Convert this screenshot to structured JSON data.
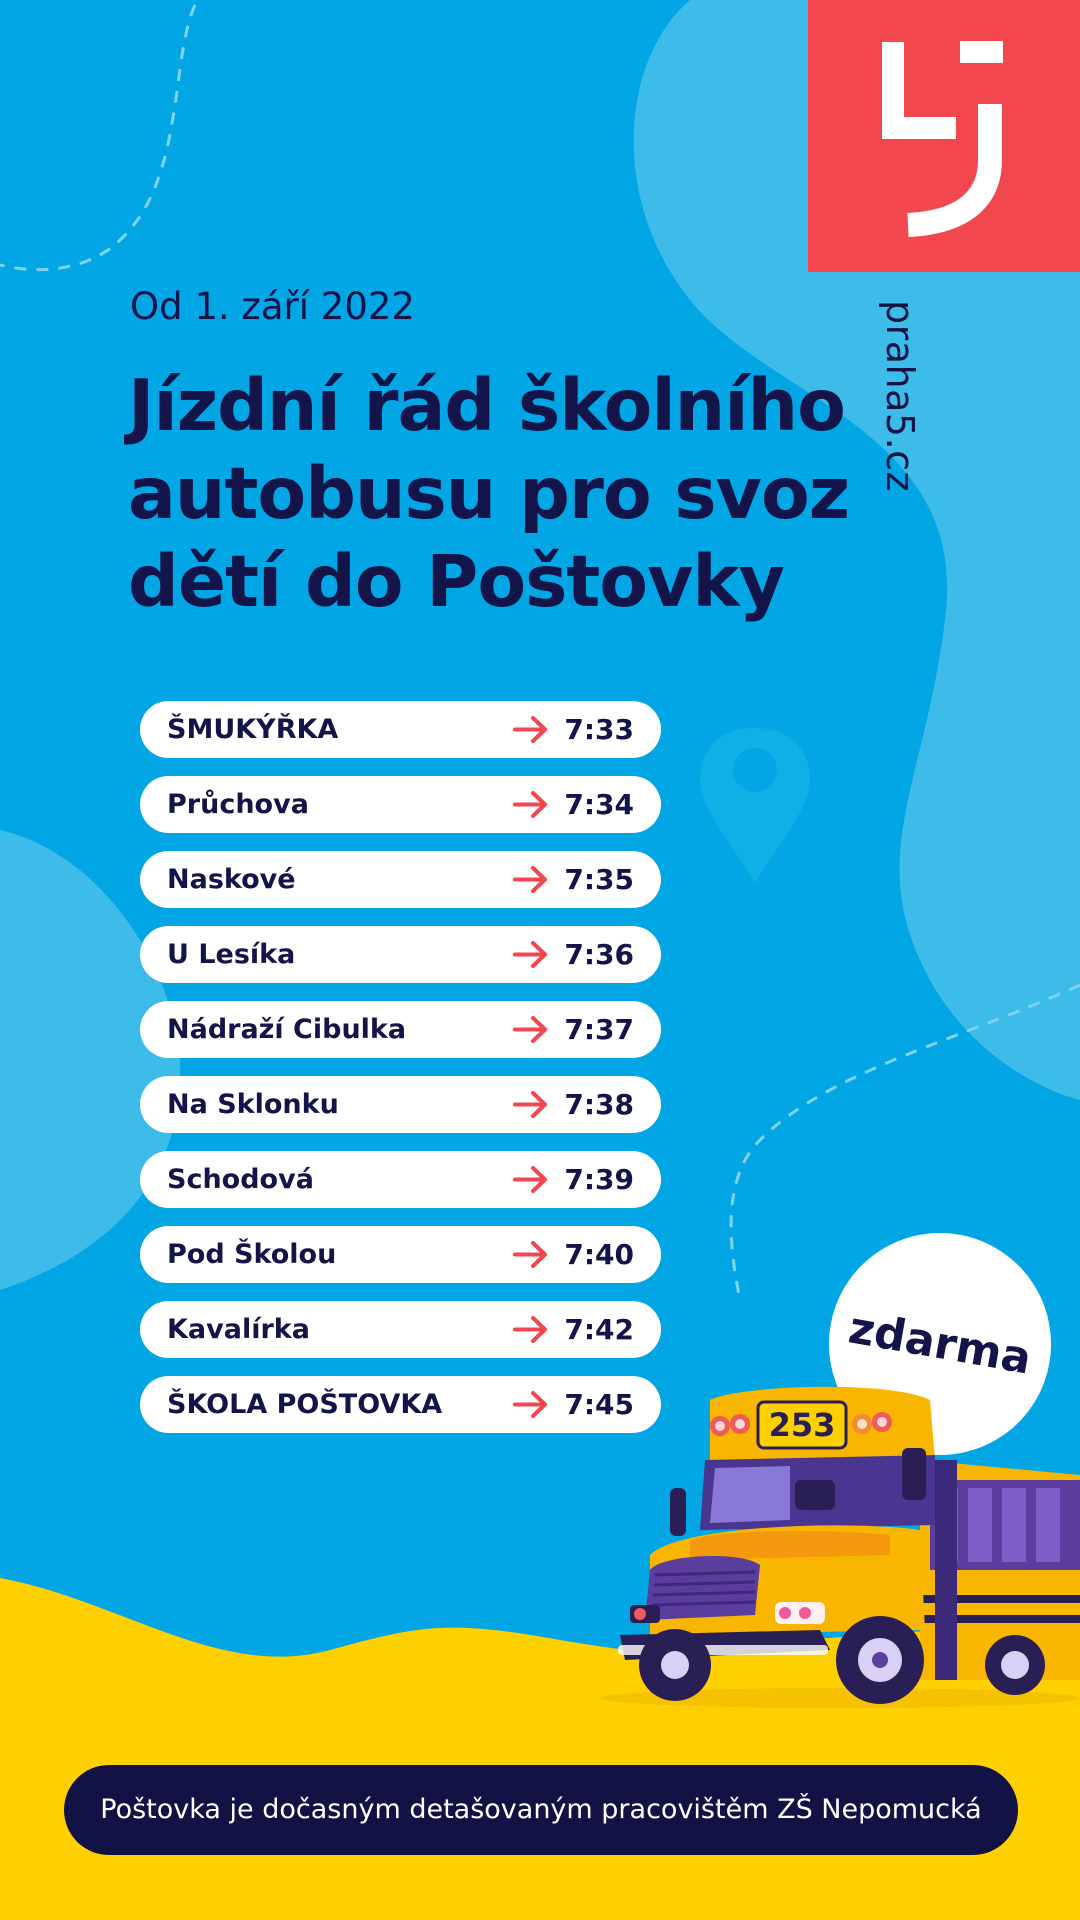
{
  "brand": {
    "logo_color": "#f2474f",
    "domain": "praha5.cz"
  },
  "header": {
    "date": "Od 1. září 2022",
    "title_lines": [
      "Jízdní řád školního",
      "autobusu pro svoz",
      "dětí do Poštovky"
    ]
  },
  "stops": [
    {
      "name": "ŠMUKÝŘKA",
      "time": "7:33"
    },
    {
      "name": "Průchova",
      "time": "7:34"
    },
    {
      "name": "Naskové",
      "time": "7:35"
    },
    {
      "name": "U Lesíka",
      "time": "7:36"
    },
    {
      "name": "Nádraží Cibulka",
      "time": "7:37"
    },
    {
      "name": "Na Sklonku",
      "time": "7:38"
    },
    {
      "name": "Schodová",
      "time": "7:39"
    },
    {
      "name": "Pod Školou",
      "time": "7:40"
    },
    {
      "name": "Kavalírka",
      "time": "7:42"
    },
    {
      "name": "ŠKOLA POŠTOVKA",
      "time": "7:45"
    }
  ],
  "badge": {
    "label": "zdarma"
  },
  "bus": {
    "number": "253"
  },
  "footer": {
    "text": "Poštovka je dočasným detašovaným pracovištěm ZŠ Nepomucká"
  },
  "colors": {
    "background": "#02a6e4",
    "wave_light": "#3dbcea",
    "ground": "#ffd000",
    "navy": "#131449",
    "arrow_red": "#f2474f",
    "bus_yellow": "#f9b600"
  }
}
